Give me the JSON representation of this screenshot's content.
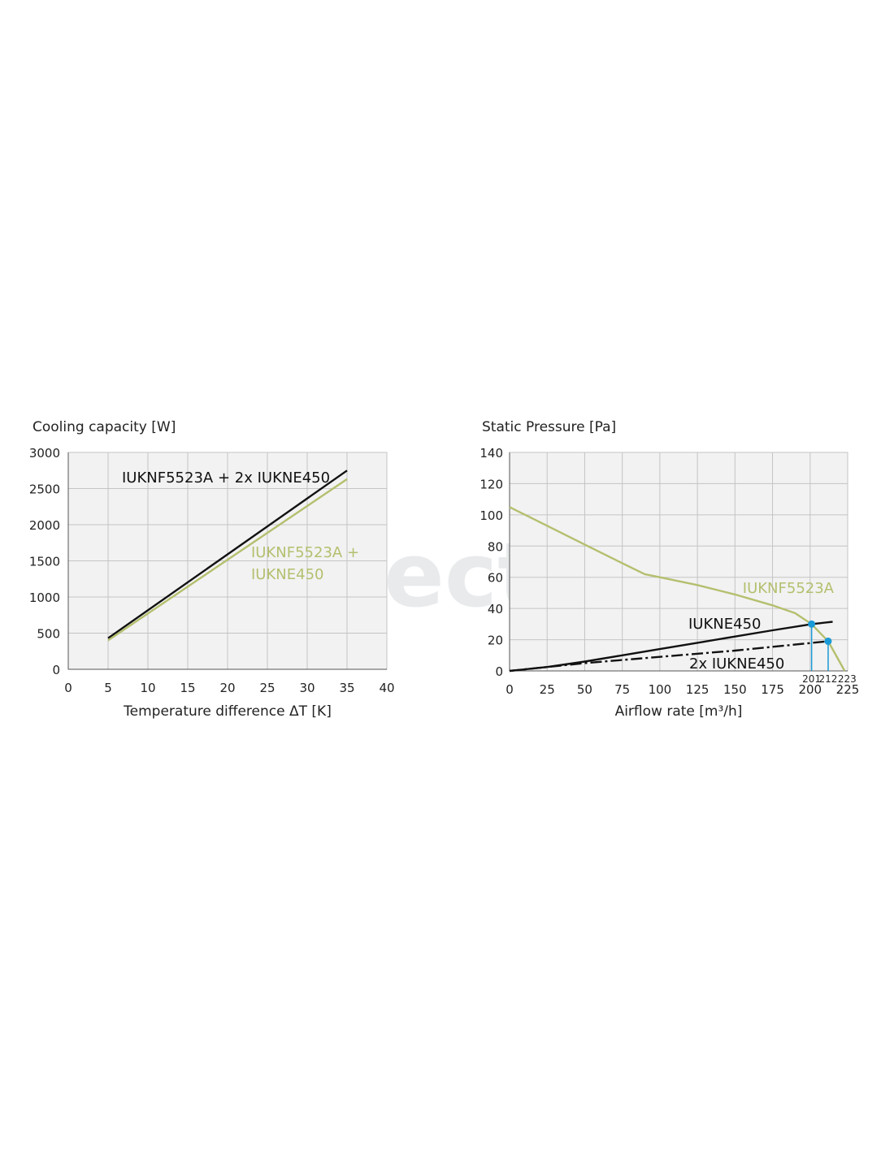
{
  "watermark": "electricon",
  "colors": {
    "black_series": "#111111",
    "green_series": "#b5bf6e",
    "marker": "#1a9ad6",
    "plot_bg": "#f2f2f2",
    "grid": "#c4c4c4"
  },
  "chart_data": [
    {
      "type": "line",
      "title": "Cooling capacity [W]",
      "xlabel": "Temperature difference ΔT [K]",
      "ylabel": "",
      "xlim": [
        0,
        40
      ],
      "ylim": [
        0,
        3000
      ],
      "xticks": [
        0,
        5,
        10,
        15,
        20,
        25,
        30,
        35,
        40
      ],
      "yticks": [
        0,
        500,
        1000,
        1500,
        2000,
        2500,
        3000
      ],
      "grid": true,
      "series": [
        {
          "name": "IUKNF5523A + 2x IUKNE450",
          "color": "#111111",
          "style": "solid",
          "x": [
            5,
            35
          ],
          "y": [
            430,
            2750
          ]
        },
        {
          "name": "IUKNF5523A + IUKNE450",
          "color": "#b5bf6e",
          "style": "solid",
          "x": [
            5,
            35
          ],
          "y": [
            400,
            2630
          ]
        }
      ]
    },
    {
      "type": "line",
      "title": "Static Pressure [Pa]",
      "xlabel": "Airflow rate [m³/h]",
      "ylabel": "",
      "xlim": [
        0,
        225
      ],
      "ylim": [
        0,
        140
      ],
      "xticks": [
        0,
        25,
        50,
        75,
        100,
        125,
        150,
        175,
        200,
        225
      ],
      "yticks": [
        0,
        20,
        40,
        60,
        80,
        100,
        120,
        140
      ],
      "grid": true,
      "series": [
        {
          "name": "IUKNF5523A",
          "color": "#b5bf6e",
          "style": "solid",
          "x": [
            0,
            25,
            50,
            75,
            90,
            100,
            125,
            150,
            175,
            190,
            201,
            212,
            223
          ],
          "y": [
            105,
            93,
            81,
            69,
            62,
            60,
            55,
            49,
            42,
            37,
            30,
            19,
            0
          ]
        },
        {
          "name": "IUKNE450",
          "color": "#111111",
          "style": "solid",
          "x": [
            0,
            25,
            50,
            75,
            100,
            125,
            150,
            175,
            201,
            215
          ],
          "y": [
            0,
            2.5,
            6,
            10,
            14,
            18,
            22,
            26,
            30,
            31.5
          ]
        },
        {
          "name": "2x IUKNE450",
          "color": "#111111",
          "style": "dash-dot",
          "x": [
            0,
            50,
            100,
            150,
            212,
            215
          ],
          "y": [
            0,
            5,
            9,
            13,
            19,
            19.5
          ]
        }
      ],
      "operating_points": [
        {
          "x": 201,
          "y": 30,
          "label": "201"
        },
        {
          "x": 212,
          "y": 19,
          "label": "212"
        }
      ],
      "annotations": [
        {
          "x": 223,
          "label": "223"
        }
      ]
    }
  ]
}
